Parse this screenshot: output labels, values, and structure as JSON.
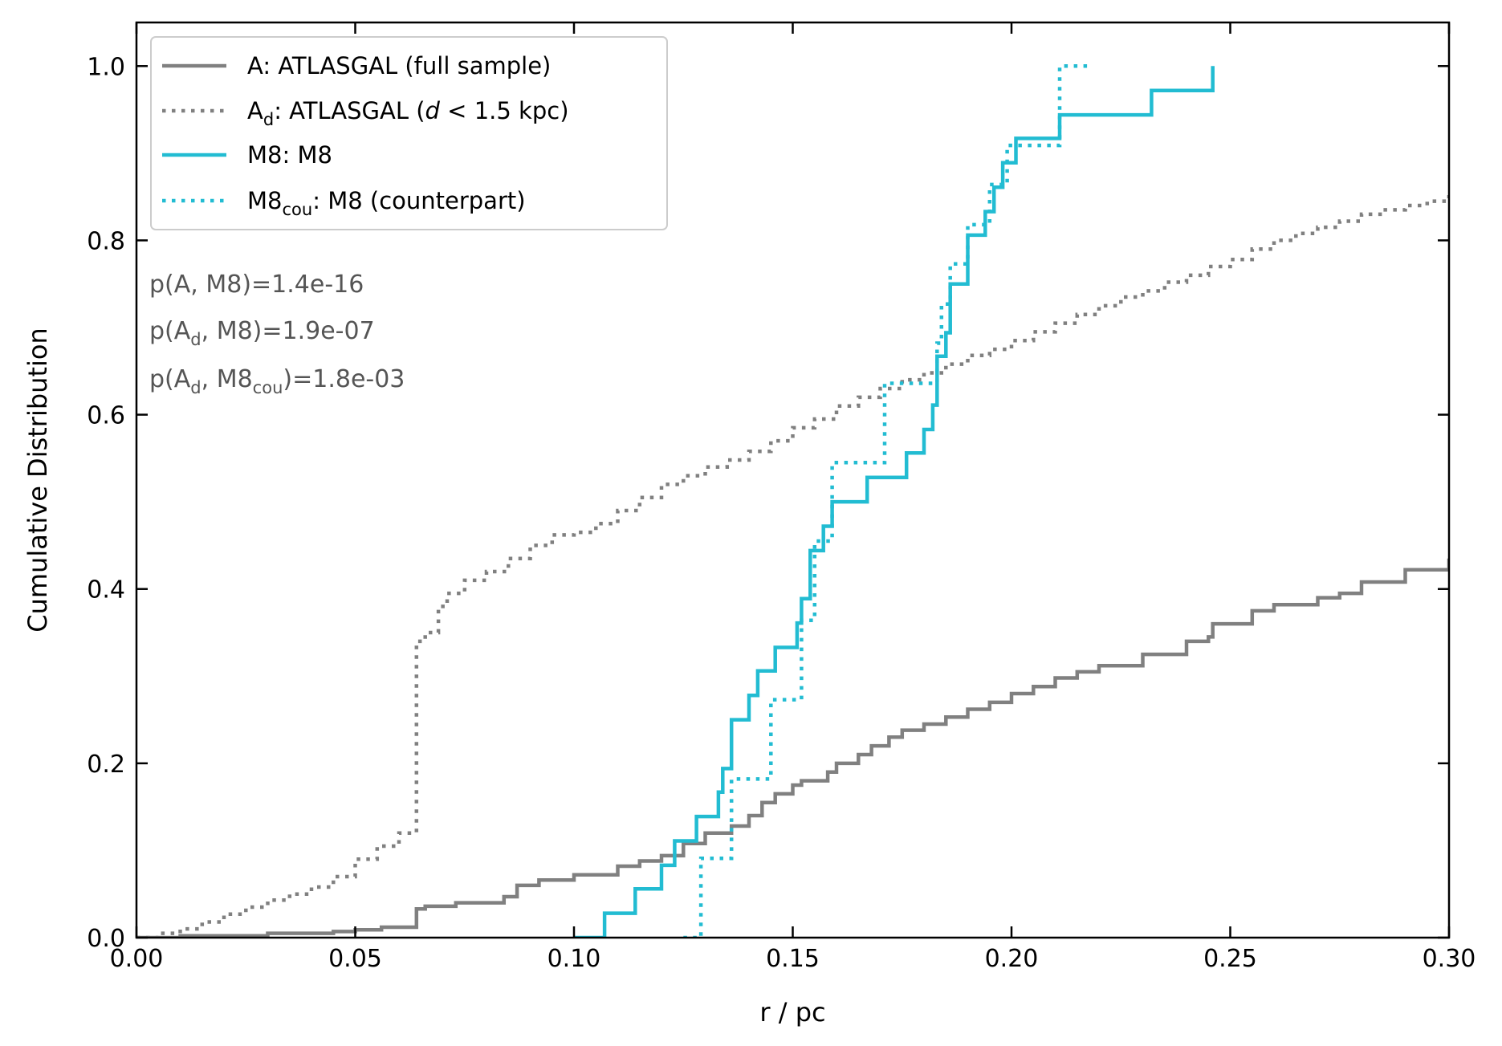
{
  "chart_data": {
    "type": "line",
    "title": "",
    "xlabel": "r / pc",
    "ylabel": "Cumulative Distribution",
    "xlim": [
      0.0,
      0.3
    ],
    "ylim": [
      0.0,
      1.05
    ],
    "x_ticks": [
      0.0,
      0.05,
      0.1,
      0.15,
      0.2,
      0.25,
      0.3
    ],
    "x_tick_labels": [
      "0.00",
      "0.05",
      "0.10",
      "0.15",
      "0.20",
      "0.25",
      "0.30"
    ],
    "y_ticks": [
      0.0,
      0.2,
      0.4,
      0.6,
      0.8,
      1.0
    ],
    "y_tick_labels": [
      "0.0",
      "0.2",
      "0.4",
      "0.6",
      "0.8",
      "1.0"
    ],
    "grid": false,
    "legend_position": "top-left",
    "legend": [
      {
        "series": "A",
        "text": "A: ATLASGAL (full sample)",
        "color": "#808080",
        "style": "solid"
      },
      {
        "series": "Ad",
        "base": "A",
        "sub": "d",
        "text": ": ATLASGAL (",
        "italic": "d",
        "rest": " < 1.5 kpc)",
        "color": "#808080",
        "style": "dotted"
      },
      {
        "series": "M8",
        "text": "M8: M8",
        "color": "#22bcd2",
        "style": "solid"
      },
      {
        "series": "M8cou",
        "base": "M8",
        "sub": "cou",
        "text": ": M8 (counterpart)",
        "color": "#22bcd2",
        "style": "dotted"
      }
    ],
    "annotations": [
      {
        "parts": [
          {
            "t": "p(A, M8)=1.4e-16"
          }
        ]
      },
      {
        "parts": [
          {
            "t": "p(A"
          },
          {
            "t": "d",
            "sub": true
          },
          {
            "t": ", M8)=1.9e-07"
          }
        ]
      },
      {
        "parts": [
          {
            "t": "p(A"
          },
          {
            "t": "d",
            "sub": true
          },
          {
            "t": ", M8"
          },
          {
            "t": "cou",
            "sub": true
          },
          {
            "t": ")=1.8e-03"
          }
        ]
      }
    ],
    "series": [
      {
        "name": "A: ATLASGAL (full sample)",
        "color": "#808080",
        "style": "solid",
        "x": [
          0.0,
          0.01,
          0.03,
          0.045,
          0.05,
          0.056,
          0.064,
          0.064,
          0.066,
          0.073,
          0.084,
          0.087,
          0.092,
          0.1,
          0.11,
          0.115,
          0.12,
          0.125,
          0.13,
          0.136,
          0.14,
          0.143,
          0.146,
          0.15,
          0.152,
          0.158,
          0.16,
          0.165,
          0.168,
          0.172,
          0.175,
          0.18,
          0.185,
          0.19,
          0.195,
          0.2,
          0.205,
          0.21,
          0.215,
          0.22,
          0.23,
          0.24,
          0.245,
          0.246,
          0.255,
          0.26,
          0.27,
          0.275,
          0.28,
          0.29,
          0.3
        ],
        "y": [
          0.0,
          0.002,
          0.005,
          0.007,
          0.009,
          0.012,
          0.015,
          0.033,
          0.036,
          0.04,
          0.047,
          0.06,
          0.066,
          0.072,
          0.082,
          0.088,
          0.094,
          0.108,
          0.12,
          0.128,
          0.14,
          0.155,
          0.165,
          0.175,
          0.18,
          0.19,
          0.2,
          0.21,
          0.22,
          0.23,
          0.238,
          0.245,
          0.253,
          0.262,
          0.27,
          0.28,
          0.288,
          0.298,
          0.305,
          0.312,
          0.325,
          0.34,
          0.345,
          0.36,
          0.375,
          0.382,
          0.39,
          0.395,
          0.408,
          0.422,
          0.435
        ]
      },
      {
        "name": "Ad: ATLASGAL (d < 1.5 kpc)",
        "color": "#808080",
        "style": "dotted",
        "x": [
          0.0,
          0.005,
          0.01,
          0.015,
          0.02,
          0.025,
          0.03,
          0.035,
          0.04,
          0.045,
          0.05,
          0.055,
          0.06,
          0.064,
          0.064,
          0.066,
          0.069,
          0.071,
          0.075,
          0.08,
          0.085,
          0.09,
          0.095,
          0.1,
          0.105,
          0.11,
          0.115,
          0.12,
          0.125,
          0.13,
          0.135,
          0.14,
          0.145,
          0.15,
          0.155,
          0.16,
          0.165,
          0.17,
          0.175,
          0.18,
          0.185,
          0.19,
          0.195,
          0.2,
          0.205,
          0.21,
          0.215,
          0.22,
          0.225,
          0.23,
          0.235,
          0.24,
          0.245,
          0.25,
          0.255,
          0.26,
          0.265,
          0.27,
          0.275,
          0.28,
          0.285,
          0.29,
          0.295,
          0.3
        ],
        "y": [
          0.0,
          0.005,
          0.01,
          0.018,
          0.027,
          0.035,
          0.043,
          0.05,
          0.058,
          0.07,
          0.09,
          0.105,
          0.12,
          0.135,
          0.34,
          0.35,
          0.38,
          0.395,
          0.41,
          0.42,
          0.435,
          0.45,
          0.462,
          0.465,
          0.475,
          0.49,
          0.505,
          0.52,
          0.53,
          0.54,
          0.548,
          0.558,
          0.57,
          0.585,
          0.595,
          0.61,
          0.62,
          0.63,
          0.64,
          0.648,
          0.658,
          0.668,
          0.675,
          0.685,
          0.695,
          0.705,
          0.715,
          0.725,
          0.735,
          0.742,
          0.752,
          0.76,
          0.77,
          0.778,
          0.79,
          0.8,
          0.808,
          0.815,
          0.822,
          0.83,
          0.835,
          0.84,
          0.845,
          0.852
        ]
      },
      {
        "name": "M8: M8",
        "color": "#22bcd2",
        "style": "solid",
        "x": [
          0.1,
          0.107,
          0.114,
          0.12,
          0.123,
          0.128,
          0.133,
          0.134,
          0.136,
          0.14,
          0.142,
          0.146,
          0.151,
          0.152,
          0.154,
          0.157,
          0.159,
          0.167,
          0.176,
          0.18,
          0.182,
          0.183,
          0.185,
          0.186,
          0.186,
          0.19,
          0.194,
          0.196,
          0.198,
          0.201,
          0.211,
          0.232,
          0.246
        ],
        "y": [
          0.0,
          0.028,
          0.056,
          0.083,
          0.111,
          0.139,
          0.167,
          0.194,
          0.25,
          0.278,
          0.306,
          0.333,
          0.361,
          0.389,
          0.444,
          0.472,
          0.5,
          0.528,
          0.556,
          0.583,
          0.611,
          0.667,
          0.694,
          0.722,
          0.75,
          0.806,
          0.833,
          0.861,
          0.889,
          0.917,
          0.944,
          0.972,
          1.0
        ]
      },
      {
        "name": "M8cou: M8 (counterpart)",
        "color": "#22bcd2",
        "style": "dotted",
        "x": [
          0.125,
          0.129,
          0.136,
          0.145,
          0.152,
          0.155,
          0.159,
          0.171,
          0.177,
          0.183,
          0.184,
          0.186,
          0.19,
          0.195,
          0.199,
          0.211,
          0.218
        ],
        "y": [
          0.0,
          0.091,
          0.182,
          0.273,
          0.364,
          0.455,
          0.545,
          0.636,
          0.636,
          0.682,
          0.727,
          0.773,
          0.818,
          0.864,
          0.909,
          1.0,
          1.0
        ]
      }
    ]
  }
}
